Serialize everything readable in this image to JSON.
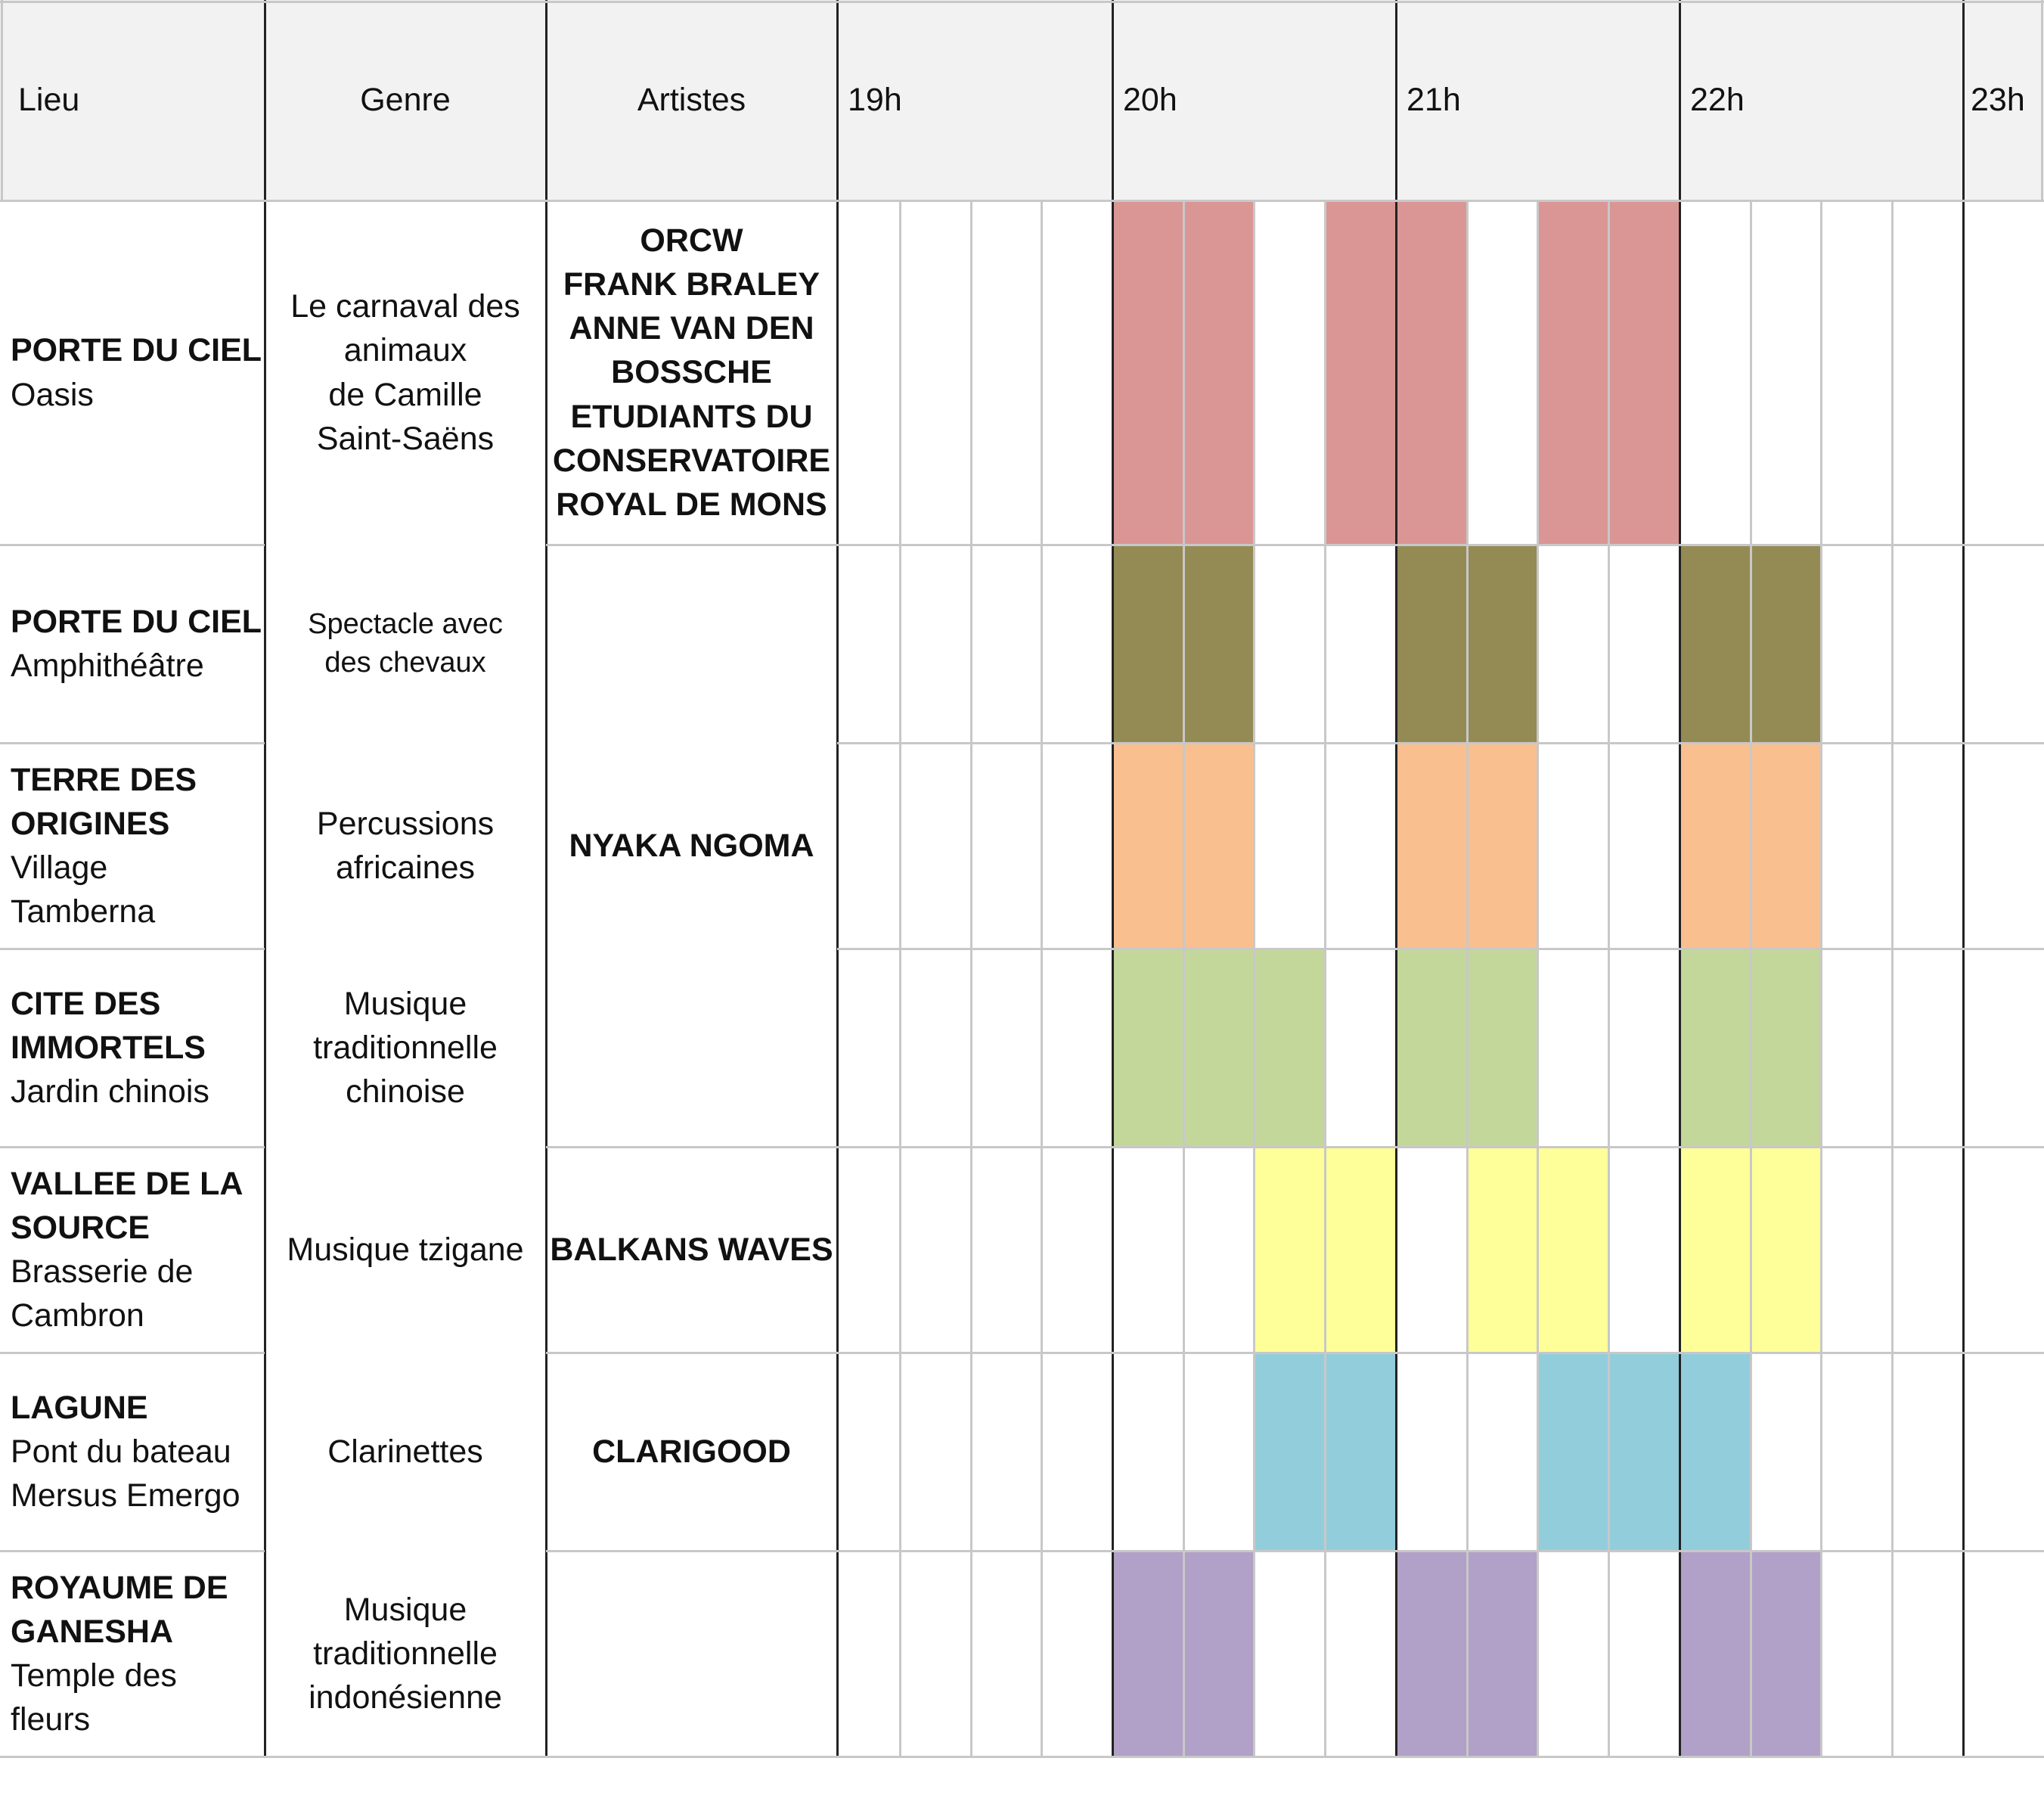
{
  "header": {
    "lieu": "Lieu",
    "genre": "Genre",
    "artistes": "Artistes",
    "hours": [
      "19h",
      "20h",
      "21h",
      "22h",
      "23h"
    ]
  },
  "rows": [
    {
      "lieu_bold": [
        "PORTE DU CIEL"
      ],
      "lieu_sub": [
        "Oasis"
      ],
      "genre": [
        "Le carnaval des",
        "animaux",
        "de Camille",
        "Saint-Saëns"
      ]
    },
    {
      "lieu_bold": [
        "PORTE DU CIEL"
      ],
      "lieu_sub": [
        "Amphithéâtre"
      ],
      "genre": [
        "Spectacle avec",
        "des chevaux"
      ]
    },
    {
      "lieu_bold": [
        "TERRE DES",
        "ORIGINES"
      ],
      "lieu_sub": [
        "Village",
        "Tamberna"
      ],
      "genre": [
        "Percussions",
        "africaines"
      ]
    },
    {
      "lieu_bold": [
        "CITE DES",
        "IMMORTELS"
      ],
      "lieu_sub": [
        "Jardin chinois"
      ],
      "genre": [
        "Musique",
        "traditionnelle",
        "chinoise"
      ]
    },
    {
      "lieu_bold": [
        "VALLEE DE LA",
        "SOURCE"
      ],
      "lieu_sub": [
        "Brasserie de",
        "Cambron"
      ],
      "genre": [
        "Musique tzigane"
      ]
    },
    {
      "lieu_bold": [
        "LAGUNE"
      ],
      "lieu_sub": [
        "Pont du bateau",
        "Mersus Emergo"
      ],
      "genre": [
        "Clarinettes"
      ]
    },
    {
      "lieu_bold": [
        "ROYAUME DE",
        "GANESHA"
      ],
      "lieu_sub": [
        "Temple des",
        "fleurs"
      ],
      "genre": [
        "Musique",
        "traditionnelle",
        "indonésienne"
      ]
    }
  ],
  "artists": [
    {
      "lines": [
        "ORCW",
        "FRANK BRALEY",
        "ANNE VAN DEN",
        "BOSSCHE",
        "ETUDIANTS DU",
        "CONSERVATOIRE",
        "ROYAL DE MONS"
      ]
    },
    {
      "lines": [
        "NYAKA NGOMA"
      ]
    },
    {
      "lines": [
        "BALKANS WAVES"
      ]
    },
    {
      "lines": [
        "CLARIGOOD"
      ]
    }
  ],
  "schedule": [
    {
      "color": "#da9694",
      "slots": [
        4,
        5,
        7,
        8,
        10,
        11
      ]
    },
    {
      "color": "#948a54",
      "slots": [
        4,
        5,
        8,
        9,
        12,
        13
      ]
    },
    {
      "color": "#fabf8f",
      "slots": [
        4,
        5,
        8,
        9,
        12,
        13
      ]
    },
    {
      "color": "#c4d79b",
      "slots": [
        4,
        5,
        6,
        8,
        9,
        12,
        13
      ]
    },
    {
      "color": "#ffff99",
      "slots": [
        6,
        7,
        9,
        10,
        12,
        13
      ]
    },
    {
      "color": "#92cddc",
      "slots": [
        6,
        7,
        10,
        11,
        12
      ]
    },
    {
      "color": "#b1a0c7",
      "slots": [
        4,
        5,
        8,
        9,
        12,
        13
      ]
    }
  ]
}
